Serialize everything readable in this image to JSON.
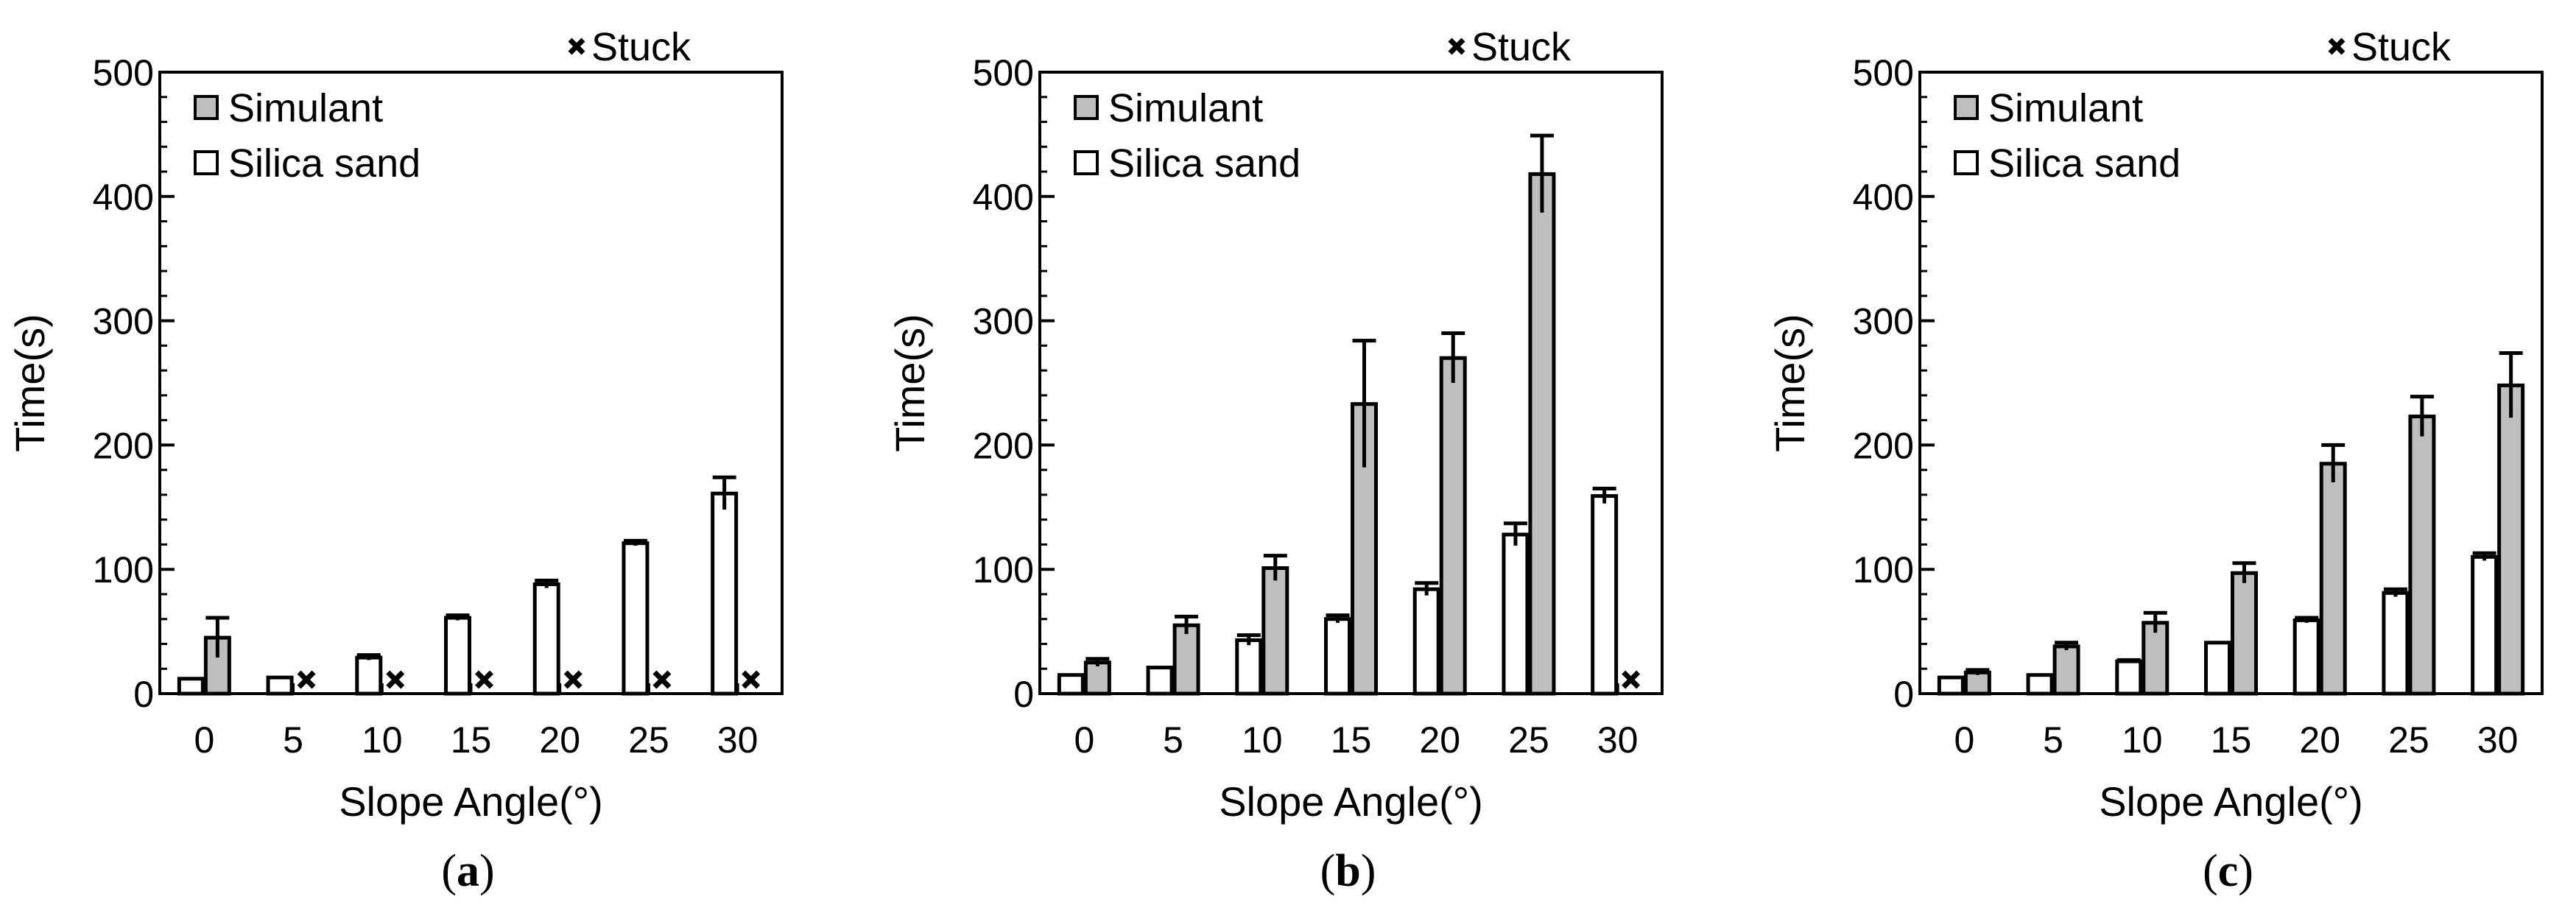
{
  "legend": {
    "stuck": "Stuck",
    "simulant": "Simulant",
    "silica": "Silica sand"
  },
  "colors": {
    "simulant": "#bebebe",
    "silica": "#ffffff",
    "stroke": "#000000"
  },
  "chart_data": [
    {
      "type": "bar",
      "panel": "(a)",
      "panel_letter": "a",
      "xlabel": "Slope Angle(°)",
      "ylabel": "Time(s)",
      "ylim": [
        0,
        500
      ],
      "yticks": [
        0,
        100,
        200,
        300,
        400,
        500
      ],
      "categories": [
        "0",
        "5",
        "10",
        "15",
        "20",
        "25",
        "30"
      ],
      "series": [
        {
          "name": "Silica sand",
          "values": [
            12,
            13,
            29,
            61,
            88,
            121,
            161
          ],
          "errors": [
            0,
            0,
            2,
            2,
            3,
            2,
            13
          ],
          "stuck": [
            false,
            false,
            false,
            false,
            false,
            false,
            false
          ]
        },
        {
          "name": "Simulant",
          "values": [
            45,
            null,
            null,
            null,
            null,
            null,
            null
          ],
          "errors": [
            16,
            0,
            0,
            0,
            0,
            0,
            0
          ],
          "stuck": [
            false,
            true,
            true,
            true,
            true,
            true,
            true
          ]
        }
      ]
    },
    {
      "type": "bar",
      "panel": "(b)",
      "panel_letter": "b",
      "xlabel": "Slope Angle(°)",
      "ylabel": "Time(s)",
      "ylim": [
        0,
        500
      ],
      "yticks": [
        0,
        100,
        200,
        300,
        400,
        500
      ],
      "categories": [
        "0",
        "5",
        "10",
        "15",
        "20",
        "25",
        "30"
      ],
      "series": [
        {
          "name": "Silica sand",
          "values": [
            15,
            21,
            43,
            60,
            84,
            128,
            159
          ],
          "errors": [
            0,
            0,
            4,
            3,
            5,
            9,
            6
          ],
          "stuck": [
            false,
            false,
            false,
            false,
            false,
            false,
            false
          ]
        },
        {
          "name": "Simulant",
          "values": [
            25,
            55,
            101,
            233,
            270,
            418,
            null
          ],
          "errors": [
            3,
            7,
            10,
            51,
            20,
            31,
            0
          ],
          "stuck": [
            false,
            false,
            false,
            false,
            false,
            false,
            true
          ]
        }
      ]
    },
    {
      "type": "bar",
      "panel": "(c)",
      "panel_letter": "c",
      "xlabel": "Slope Angle(°)",
      "ylabel": "Time(s)",
      "ylim": [
        0,
        500
      ],
      "yticks": [
        0,
        100,
        200,
        300,
        400,
        500
      ],
      "categories": [
        "0",
        "5",
        "10",
        "15",
        "20",
        "25",
        "30"
      ],
      "series": [
        {
          "name": "Silica sand",
          "values": [
            13,
            15,
            26,
            41,
            59,
            81,
            110
          ],
          "errors": [
            0,
            0,
            1,
            0,
            2,
            3,
            3
          ],
          "stuck": [
            false,
            false,
            false,
            false,
            false,
            false,
            false
          ]
        },
        {
          "name": "Simulant",
          "values": [
            17,
            38,
            57,
            97,
            185,
            223,
            248
          ],
          "errors": [
            2,
            3,
            8,
            8,
            15,
            16,
            26
          ],
          "stuck": [
            false,
            false,
            false,
            false,
            false,
            false,
            false
          ]
        }
      ]
    }
  ]
}
